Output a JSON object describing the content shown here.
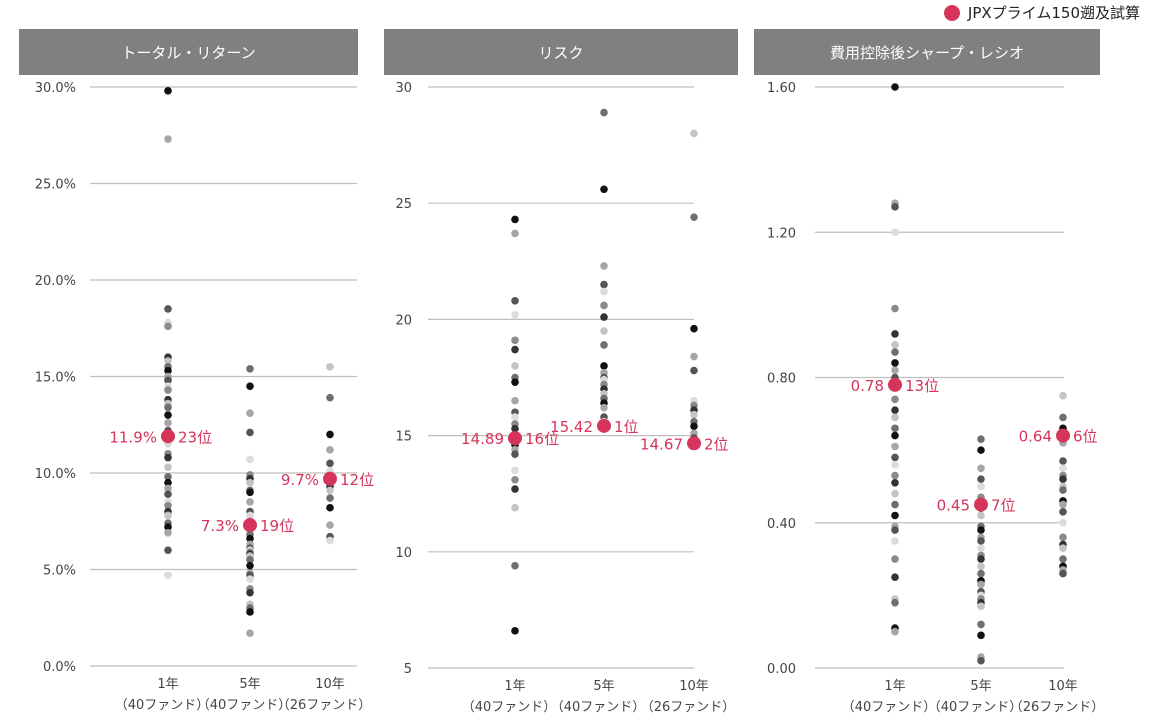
{
  "legend": {
    "label": "JPXプライム150遡及試算",
    "color": "#d6345a"
  },
  "categories": [
    {
      "line1": "1年",
      "line2": "（40ファンド）"
    },
    {
      "line1": "5年",
      "line2": "（40ファンド）"
    },
    {
      "line1": "10年",
      "line2": "（26ファンド）"
    }
  ],
  "chart_data": [
    {
      "type": "scatter",
      "title": "トータル・リターン",
      "ylim": [
        0,
        30
      ],
      "yticks": [
        "0.0%",
        "5.0%",
        "10.0%",
        "15.0%",
        "20.0%",
        "25.0%",
        "30.0%"
      ],
      "ytick_values": [
        0,
        5,
        10,
        15,
        20,
        25,
        30
      ],
      "grid": true,
      "series": [
        {
          "values": [
            [
              29.8,
              27.3,
              18.5,
              17.8,
              17.6,
              16.0,
              15.8,
              15.5,
              15.3,
              15.0,
              14.8,
              14.5,
              14.3,
              13.8,
              13.6,
              13.4,
              13.0,
              12.6,
              12.2,
              11.5,
              11.0,
              10.8,
              10.3,
              9.8,
              9.5,
              9.2,
              8.9,
              8.5,
              8.3,
              8.0,
              7.8,
              7.4,
              7.2,
              6.9,
              6.0,
              4.7
            ],
            [
              15.4,
              14.5,
              13.1,
              12.1,
              10.7,
              9.9,
              9.7,
              9.5,
              9.1,
              9.0,
              8.5,
              8.0,
              7.8,
              7.5,
              7.2,
              7.0,
              6.8,
              6.6,
              6.3,
              6.1,
              6.0,
              5.9,
              5.8,
              5.7,
              5.5,
              5.2,
              4.8,
              4.7,
              4.5,
              4.0,
              3.8,
              3.2,
              3.0,
              2.8,
              1.7
            ],
            [
              15.5,
              13.9,
              12.0,
              11.2,
              10.5,
              10.1,
              9.8,
              9.3,
              9.1,
              8.7,
              8.2,
              7.3,
              6.7,
              6.5
            ]
          ]
        },
        {
          "name": "JPXプライム150遡及試算",
          "values": [
            11.9,
            7.3,
            9.7
          ],
          "labels": [
            "11.9%",
            "7.3%",
            "9.7%"
          ],
          "ranks": [
            "23位",
            "19位",
            "12位"
          ]
        }
      ]
    },
    {
      "type": "scatter",
      "title": "リスク",
      "ylim": [
        5,
        30
      ],
      "yticks": [
        "5",
        "10",
        "15",
        "20",
        "25",
        "30"
      ],
      "ytick_values": [
        5,
        10,
        15,
        20,
        25,
        30
      ],
      "grid": true,
      "series": [
        {
          "values": [
            [
              24.3,
              23.7,
              20.8,
              20.2,
              19.1,
              18.7,
              18.0,
              17.5,
              17.3,
              16.5,
              16.0,
              15.8,
              15.5,
              15.3,
              15.0,
              14.8,
              14.6,
              14.4,
              14.2,
              13.5,
              13.1,
              12.7,
              11.9,
              9.4,
              6.6
            ],
            [
              28.9,
              25.6,
              22.3,
              21.5,
              21.2,
              20.6,
              20.1,
              19.5,
              18.9,
              18.0,
              17.7,
              17.5,
              17.4,
              17.2,
              17.0,
              16.8,
              16.6,
              16.4,
              16.2,
              15.8,
              15.6
            ],
            [
              28.0,
              24.4,
              19.6,
              18.4,
              17.8,
              16.5,
              16.3,
              16.1,
              15.9,
              15.6,
              15.4,
              15.1,
              14.9,
              14.7
            ]
          ]
        },
        {
          "name": "JPXプライム150遡及試算",
          "values": [
            14.89,
            15.42,
            14.67
          ],
          "labels": [
            "14.89",
            "15.42",
            "14.67"
          ],
          "ranks": [
            "16位",
            "1位",
            "2位"
          ]
        }
      ]
    },
    {
      "type": "scatter",
      "title": "費用控除後シャープ・レシオ",
      "ylim": [
        0,
        1.6
      ],
      "yticks": [
        "0.00",
        "0.40",
        "0.80",
        "1.20",
        "1.60"
      ],
      "ytick_values": [
        0,
        0.4,
        0.8,
        1.2,
        1.6
      ],
      "grid": true,
      "series": [
        {
          "values": [
            [
              1.6,
              1.28,
              1.27,
              1.2,
              0.99,
              0.92,
              0.89,
              0.87,
              0.84,
              0.82,
              0.8,
              0.77,
              0.74,
              0.71,
              0.69,
              0.66,
              0.64,
              0.61,
              0.58,
              0.56,
              0.53,
              0.51,
              0.48,
              0.45,
              0.42,
              0.39,
              0.38,
              0.35,
              0.3,
              0.25,
              0.19,
              0.18,
              0.11,
              0.1
            ],
            [
              0.63,
              0.6,
              0.55,
              0.52,
              0.5,
              0.47,
              0.44,
              0.42,
              0.39,
              0.38,
              0.36,
              0.35,
              0.33,
              0.31,
              0.3,
              0.28,
              0.26,
              0.24,
              0.23,
              0.21,
              0.2,
              0.19,
              0.18,
              0.17,
              0.12,
              0.09,
              0.03,
              0.02
            ],
            [
              0.75,
              0.69,
              0.66,
              0.62,
              0.57,
              0.55,
              0.53,
              0.52,
              0.5,
              0.49,
              0.46,
              0.45,
              0.43,
              0.4,
              0.36,
              0.34,
              0.33,
              0.3,
              0.28,
              0.27,
              0.26
            ]
          ]
        },
        {
          "name": "JPXプライム150遡及試算",
          "values": [
            0.78,
            0.45,
            0.64
          ],
          "labels": [
            "0.78",
            "0.45",
            "0.64"
          ],
          "ranks": [
            "13位",
            "7位",
            "6位"
          ]
        }
      ]
    }
  ]
}
